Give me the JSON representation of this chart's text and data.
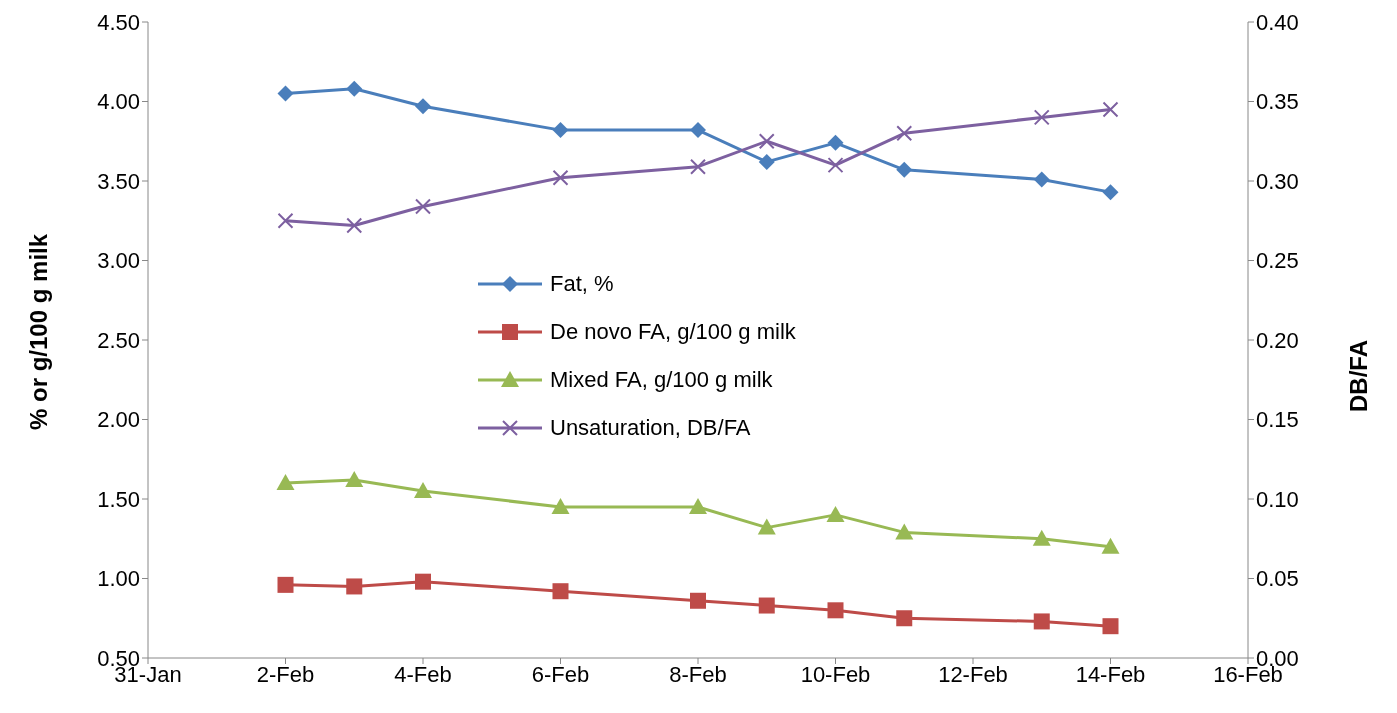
{
  "chart_data": {
    "type": "line",
    "ylabel": "% or g/100 g milk",
    "y2label": "DB/FA",
    "x": [
      "--02-02",
      "--02-03",
      "--02-04",
      "--02-06",
      "--02-08",
      "--02-09",
      "--02-10",
      "--02-11",
      "--02-13",
      "--02-14"
    ],
    "xlim": [
      "--01-31",
      "--02-16"
    ],
    "xticks": [
      {
        "value": "--01-31",
        "label": "31-Jan"
      },
      {
        "value": "--02-02",
        "label": "2-Feb"
      },
      {
        "value": "--02-04",
        "label": "4-Feb"
      },
      {
        "value": "--02-06",
        "label": "6-Feb"
      },
      {
        "value": "--02-08",
        "label": "8-Feb"
      },
      {
        "value": "--02-10",
        "label": "10-Feb"
      },
      {
        "value": "--02-12",
        "label": "12-Feb"
      },
      {
        "value": "--02-14",
        "label": "14-Feb"
      },
      {
        "value": "--02-16",
        "label": "16-Feb"
      }
    ],
    "ylim": [
      0.5,
      4.5
    ],
    "yticks": [
      {
        "value": 0.5,
        "label": "0.50"
      },
      {
        "value": 1,
        "label": "1.00"
      },
      {
        "value": 1.5,
        "label": "1.50"
      },
      {
        "value": 2,
        "label": "2.00"
      },
      {
        "value": 2.5,
        "label": "2.50"
      },
      {
        "value": 3,
        "label": "3.00"
      },
      {
        "value": 3.5,
        "label": "3.50"
      },
      {
        "value": 4,
        "label": "4.00"
      },
      {
        "value": 4.5,
        "label": "4.50"
      }
    ],
    "y2lim": [
      0,
      0.4
    ],
    "y2ticks": [
      {
        "value": 0,
        "label": "0.00"
      },
      {
        "value": 0.05,
        "label": "0.05"
      },
      {
        "value": 0.1,
        "label": "0.10"
      },
      {
        "value": 0.15,
        "label": "0.15"
      },
      {
        "value": 0.2,
        "label": "0.20"
      },
      {
        "value": 0.25,
        "label": "0.25"
      },
      {
        "value": 0.3,
        "label": "0.30"
      },
      {
        "value": 0.35,
        "label": "0.35"
      },
      {
        "value": 0.4,
        "label": "0.40"
      }
    ],
    "grid": false,
    "legend": "center",
    "line_style": "solid",
    "series": [
      {
        "name": "Fat, %",
        "color": "#4a7ebb",
        "marker": "diamond",
        "values": [
          4.05,
          4.08,
          3.97,
          3.82,
          3.82,
          3.62,
          3.74,
          3.57,
          3.51,
          3.43
        ]
      },
      {
        "name": "De novo FA, g/100 g milk",
        "color": "#be4b48",
        "marker": "square",
        "values": [
          0.96,
          0.95,
          0.98,
          0.92,
          0.86,
          0.83,
          0.8,
          0.75,
          0.73,
          0.7
        ]
      },
      {
        "name": "Mixed FA, g/100 g milk",
        "color": "#98b954",
        "marker": "triangle",
        "values": [
          1.6,
          1.62,
          1.55,
          1.45,
          1.45,
          1.32,
          1.4,
          1.29,
          1.25,
          1.2
        ]
      },
      {
        "name": "Unsaturation, DB/FA",
        "color": "#7d60a0",
        "marker": "cross",
        "axis": "y2",
        "values": [
          0.275,
          0.272,
          0.284,
          0.302,
          0.309,
          0.325,
          0.31,
          0.33,
          0.34,
          0.345
        ]
      }
    ]
  }
}
